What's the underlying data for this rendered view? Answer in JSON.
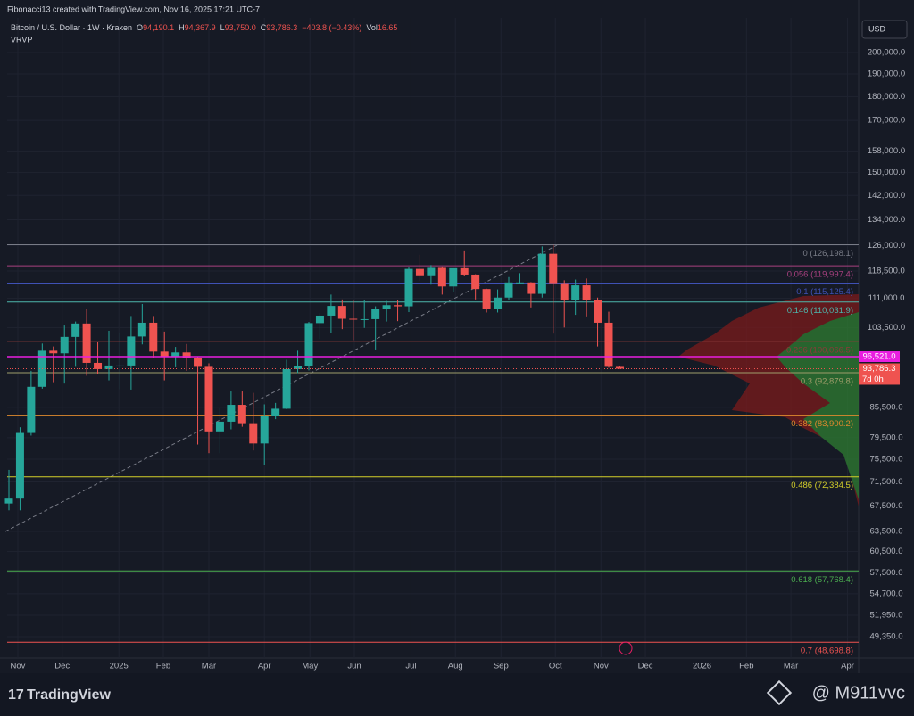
{
  "header": "Fibonacci13 created with TradingView.com, Nov 16, 2025 17:21 UTC-7",
  "currency_button": "USD",
  "indicator": "VRVP",
  "legend": {
    "name": "Bitcoin / U.S. Dollar · 1W · Kraken",
    "items": [
      {
        "key": "O",
        "text": "94,190.1"
      },
      {
        "key": "H",
        "text": "94,367.9"
      },
      {
        "key": "L",
        "text": "93,750.0"
      },
      {
        "key": "C",
        "text": "93,786.3"
      },
      {
        "key": "",
        "text": "−403.8 (−0.43%)"
      },
      {
        "key": "Vol",
        "text": "16.65"
      }
    ]
  },
  "footer": {
    "brand": "TradingView",
    "watermark": "@ M911vvc"
  },
  "chart_data": {
    "type": "candlestick",
    "log_scale": true,
    "grid": true,
    "ylim": [
      46884,
      217380
    ],
    "xlim": [
      -0.16,
      76.5
    ],
    "yticks": [
      {
        "value": 200000,
        "label": "200,000.0"
      },
      {
        "value": 190000,
        "label": "190,000.0"
      },
      {
        "value": 180000,
        "label": "180,000.0"
      },
      {
        "value": 170000,
        "label": "170,000.0"
      },
      {
        "value": 158000,
        "label": "158,000.0"
      },
      {
        "value": 150000,
        "label": "150,000.0"
      },
      {
        "value": 142000,
        "label": "142,000.0"
      },
      {
        "value": 134000,
        "label": "134,000.0"
      },
      {
        "value": 126000,
        "label": "126,000.0"
      },
      {
        "value": 118500,
        "label": "118,500.0"
      },
      {
        "value": 111000,
        "label": "111,000.0"
      },
      {
        "value": 103500,
        "label": "103,500.0"
      },
      {
        "value": 85500,
        "label": "85,500.0"
      },
      {
        "value": 79500,
        "label": "79,500.0"
      },
      {
        "value": 75500,
        "label": "75,500.0"
      },
      {
        "value": 71500,
        "label": "71,500.0"
      },
      {
        "value": 67500,
        "label": "67,500.0"
      },
      {
        "value": 63500,
        "label": "63,500.0"
      },
      {
        "value": 60500,
        "label": "60,500.0"
      },
      {
        "value": 57500,
        "label": "57,500.0"
      },
      {
        "value": 54700,
        "label": "54,700.0"
      },
      {
        "value": 51950,
        "label": "51,950.0"
      },
      {
        "value": 49350,
        "label": "49,350.0"
      }
    ],
    "xticks": [
      {
        "value": 0.8,
        "label": "Nov"
      },
      {
        "value": 4.8,
        "label": "Dec"
      },
      {
        "value": 9.9,
        "label": "2025"
      },
      {
        "value": 13.9,
        "label": "Feb"
      },
      {
        "value": 18,
        "label": "Mar"
      },
      {
        "value": 23,
        "label": "Apr"
      },
      {
        "value": 27.1,
        "label": "May"
      },
      {
        "value": 31.1,
        "label": "Jun"
      },
      {
        "value": 36.2,
        "label": "Jul"
      },
      {
        "value": 40.2,
        "label": "Aug"
      },
      {
        "value": 44.3,
        "label": "Sep"
      },
      {
        "value": 49.2,
        "label": "Oct"
      },
      {
        "value": 53.3,
        "label": "Nov"
      },
      {
        "value": 57.3,
        "label": "Dec"
      },
      {
        "value": 62.4,
        "label": "2026"
      },
      {
        "value": 66.4,
        "label": "Feb"
      },
      {
        "value": 70.4,
        "label": "Mar"
      },
      {
        "value": 75.5,
        "label": "Apr"
      }
    ],
    "series": [
      {
        "up_color": "#26a69a",
        "down_color": "#ef5350",
        "open": [
          67900,
          68700,
          80400,
          89800,
          97900,
          97300,
          101200,
          104500,
          95100,
          93700,
          94500,
          94500,
          101300,
          104700,
          97700,
          96500,
          97500,
          96200,
          94200,
          80700,
          82600,
          86000,
          82300,
          78400,
          83700,
          85200,
          93700,
          94300,
          104600,
          106500,
          109000,
          105700,
          105600,
          105600,
          108300,
          109200,
          108900,
          119100,
          117300,
          119400,
          114200,
          119300,
          117500,
          113500,
          108300,
          111200,
          115300,
          115300,
          112200,
          123500,
          115100,
          110500,
          114500,
          110500,
          104700,
          94190.1
        ],
        "high": [
          73600,
          81500,
          93300,
          99600,
          98900,
          104000,
          105000,
          108300,
          99900,
          102700,
          102300,
          106400,
          109500,
          106400,
          102500,
          98800,
          99500,
          96500,
          95000,
          85300,
          88800,
          88800,
          88500,
          86100,
          86400,
          95800,
          97900,
          104900,
          107100,
          112000,
          110700,
          110500,
          110600,
          108900,
          110300,
          110500,
          119500,
          123200,
          120200,
          119800,
          119300,
          124500,
          117600,
          113600,
          113400,
          116800,
          117900,
          115400,
          125700,
          126200,
          115900,
          116100,
          116400,
          111200,
          107500,
          94367.9
        ],
        "low": [
          66800,
          66800,
          79900,
          89400,
          90800,
          90500,
          94200,
          92200,
          92500,
          91200,
          89300,
          89200,
          99400,
          96200,
          91200,
          94100,
          93300,
          78200,
          76600,
          76600,
          81100,
          81600,
          77100,
          74400,
          83100,
          85100,
          92800,
          93400,
          100700,
          102100,
          103100,
          100400,
          103400,
          98200,
          105000,
          105100,
          107400,
          115700,
          114700,
          112000,
          112700,
          117200,
          110700,
          107300,
          107300,
          110600,
          114800,
          108600,
          111200,
          102000,
          103500,
          106700,
          106300,
          98900,
          94000,
          93750.0
        ],
        "close": [
          68700,
          80400,
          89800,
          97900,
          97300,
          101200,
          104500,
          95100,
          93700,
          94500,
          94500,
          101300,
          104700,
          97700,
          96500,
          97500,
          96200,
          94200,
          80700,
          82600,
          86000,
          82300,
          78400,
          83700,
          85200,
          93700,
          94300,
          104600,
          106500,
          109000,
          105700,
          105600,
          105600,
          108300,
          109200,
          108900,
          119100,
          117300,
          119400,
          114200,
          119300,
          117500,
          113500,
          108300,
          111200,
          115300,
          115300,
          112200,
          123500,
          115100,
          110500,
          114500,
          110500,
          104700,
          94200,
          93786.3
        ]
      }
    ],
    "fib_levels": [
      {
        "price": 126198.1,
        "label": "0 (126,198.1)",
        "color": "#787b86"
      },
      {
        "price": 119997.4,
        "label": "0.056 (119,997.4)",
        "color": "#a8407f"
      },
      {
        "price": 115125.4,
        "label": "0.1 (115,125.4)",
        "color": "#3f51b5"
      },
      {
        "price": 110031.9,
        "label": "0.146 (110,031.9)",
        "color": "#4db6ac"
      },
      {
        "price": 100066.5,
        "label": "0.236 (100,066.5)",
        "color": "#8d3a3a"
      },
      {
        "price": 92879.8,
        "label": "0.3 (92,879.8)",
        "color": "#9e9d6a"
      },
      {
        "price": 83900.2,
        "label": "0.382 (83,900.2)",
        "color": "#e08a2e"
      },
      {
        "price": 72384.5,
        "label": "0.486 (72,384.5)",
        "color": "#d4cf2a"
      },
      {
        "price": 57768.4,
        "label": "0.618 (57,768.4)",
        "color": "#4caf50"
      },
      {
        "price": 48698.8,
        "label": "0.7 (48,698.8)",
        "color": "#ef5350"
      }
    ],
    "price_lines": [
      {
        "price": 96521.0,
        "label": "96,521.0",
        "color": "#e91ee0"
      },
      {
        "price": 93786.3,
        "label": "93,786.3",
        "sublabel": "7d 0h",
        "color": "#ef5350"
      }
    ]
  }
}
